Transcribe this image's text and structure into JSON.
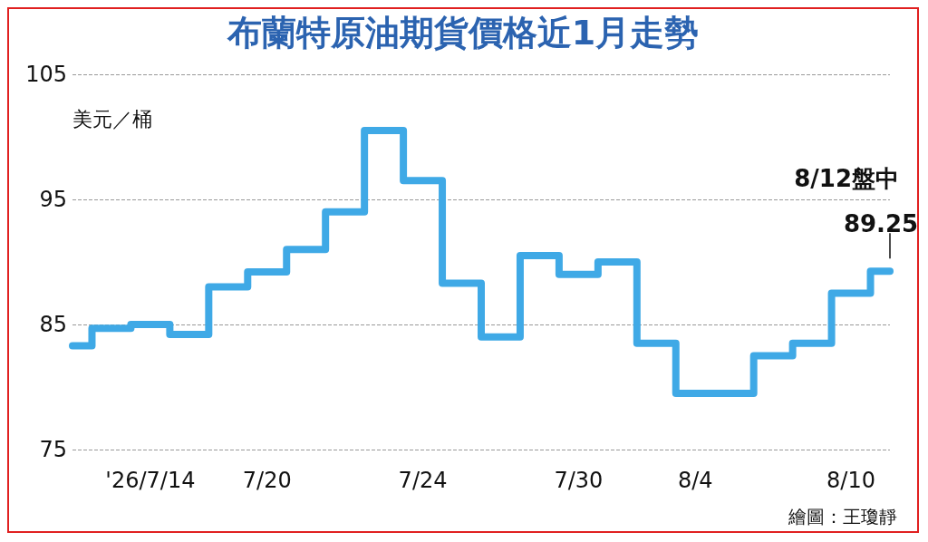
{
  "chart_data": {
    "type": "step",
    "title": "布蘭特原油期貨價格近1月走勢",
    "ylabel": "美元／桶",
    "categories": [
      null,
      null,
      "'26/7/14",
      null,
      null,
      "7/20",
      null,
      null,
      null,
      "7/24",
      null,
      null,
      null,
      "7/30",
      null,
      null,
      "8/4",
      null,
      null,
      null,
      "8/10",
      null
    ],
    "series": [
      {
        "color": "#3fa9e6",
        "values": [
          83.3,
          84.7,
          85.0,
          84.2,
          88.0,
          89.2,
          91.0,
          94.0,
          100.5,
          96.5,
          88.3,
          84.0,
          90.5,
          89.0,
          90.0,
          83.5,
          79.5,
          79.5,
          82.5,
          83.5,
          87.5,
          89.25
        ],
        "value_labels": [
          null,
          null,
          null,
          null,
          null,
          null,
          null,
          null,
          null,
          null,
          null,
          null,
          null,
          null,
          null,
          null,
          null,
          null,
          null,
          null,
          null,
          "89.25"
        ]
      }
    ],
    "annotations": [
      "8/12盤中",
      "繪圖：王瓊靜"
    ],
    "ylim": [
      75,
      105
    ],
    "yticks": [
      75,
      85,
      95,
      105
    ],
    "grid": "y",
    "marker": "none",
    "line_style": "solid"
  }
}
